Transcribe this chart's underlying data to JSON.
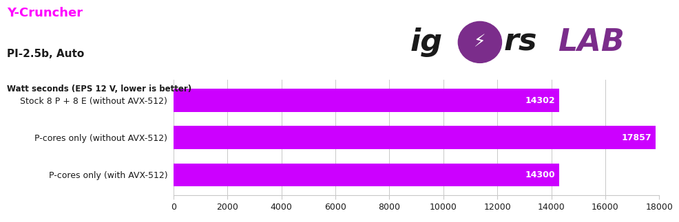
{
  "title_line1": "Y-Cruncher",
  "title_line2": "PI-2.5b, Auto",
  "subtitle": "Watt seconds (EPS 12 V, lower is better)",
  "categories": [
    "Stock 8 P + 8 E (without AVX-512)",
    "P-cores only (without AVX-512)",
    "P-cores only (with AVX-512)"
  ],
  "values": [
    14302,
    17857,
    14300
  ],
  "bar_color": "#CC00FF",
  "title_color": "#FF00FF",
  "text_color": "#1a1a1a",
  "value_label_color": "#FFFFFF",
  "xlim": [
    0,
    18000
  ],
  "xticks": [
    0,
    2000,
    4000,
    6000,
    8000,
    10000,
    12000,
    14000,
    16000,
    18000
  ],
  "background_color": "#FFFFFF",
  "grid_color": "#C8C8C8",
  "label_fontsize": 9,
  "tick_fontsize": 9,
  "bar_label_fontsize": 9,
  "logo_dark_color": "#1a1a1a",
  "logo_purple_color": "#7B2D8B"
}
